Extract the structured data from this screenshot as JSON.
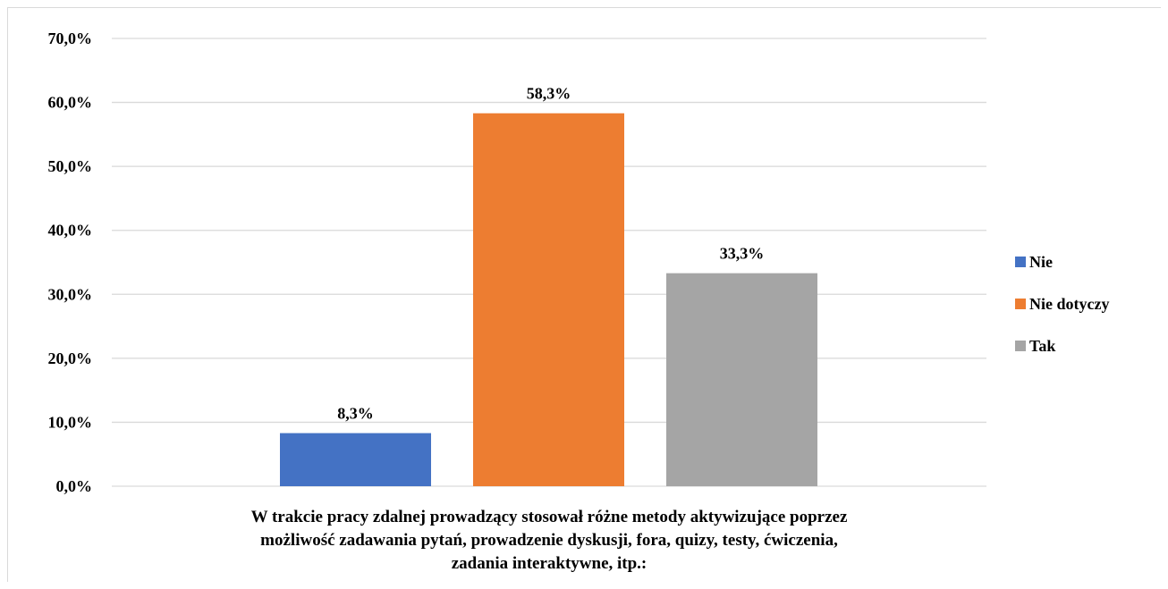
{
  "chart_data": {
    "type": "bar",
    "categories": [
      "W trakcie pracy zdalnej prowadzący stosował różne metody aktywizujące poprzez możliwość zadawania pytań, prowadzenie dyskusji, fora, quizy, testy, ćwiczenia, zadania interaktywne, itp.:"
    ],
    "category_label_lines": [
      "W trakcie pracy zdalnej prowadzący stosował różne metody aktywizujące poprzez",
      "możliwość zadawania pytań, prowadzenie dyskusji, fora, quizy, testy, ćwiczenia,",
      "zadania interaktywne, itp.:"
    ],
    "series": [
      {
        "name": "Nie",
        "values": [
          8.3
        ],
        "color": "#4472c4",
        "label": "8,3%"
      },
      {
        "name": "Nie dotyczy",
        "values": [
          58.3
        ],
        "color": "#ed7d31",
        "label": "58,3%"
      },
      {
        "name": "Tak",
        "values": [
          33.3
        ],
        "color": "#a5a5a5",
        "label": "33,3%"
      }
    ],
    "ylim": [
      0,
      70
    ],
    "yticks": [
      0,
      10,
      20,
      30,
      40,
      50,
      60,
      70
    ],
    "ytick_labels": [
      "0,0%",
      "10,0%",
      "20,0%",
      "30,0%",
      "40,0%",
      "50,0%",
      "60,0%",
      "70,0%"
    ],
    "grid": true,
    "gridline_color": "#d9d9d9",
    "legend": {
      "position": "right",
      "entries": [
        "Nie",
        "Nie dotyczy",
        "Tak"
      ]
    },
    "title": "",
    "xlabel": "",
    "ylabel": ""
  }
}
